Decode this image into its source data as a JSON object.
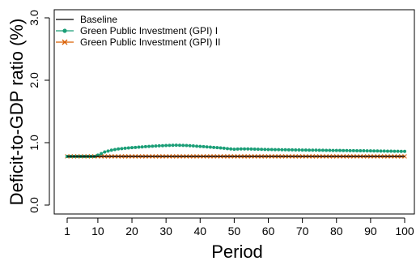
{
  "chart_data": {
    "type": "line",
    "xlabel": "Period",
    "ylabel": "Deficit-to-GDP ratio (%)",
    "xlim": [
      1,
      100
    ],
    "ylim": [
      0,
      3
    ],
    "x_ticks": [
      1,
      10,
      20,
      30,
      40,
      50,
      60,
      70,
      80,
      90,
      100
    ],
    "y_ticks": [
      0,
      1,
      2,
      3
    ],
    "x_tick_labels": [
      "1",
      "10",
      "20",
      "30",
      "40",
      "50",
      "60",
      "70",
      "80",
      "90",
      "100"
    ],
    "y_tick_labels": [
      "0.0",
      "1.0",
      "2.0",
      "3.0"
    ],
    "grid": false,
    "legend_position": "top-left",
    "series": [
      {
        "name": "Baseline",
        "style": "line",
        "color": "#000000",
        "points": [
          [
            1,
            0.78
          ],
          [
            100,
            0.78
          ]
        ]
      },
      {
        "name": "Green Public Investment (GPI) I",
        "style": "line-dots",
        "color": "#1b9e77",
        "points": [
          [
            1,
            0.78
          ],
          [
            9,
            0.78
          ],
          [
            10,
            0.8
          ],
          [
            12,
            0.85
          ],
          [
            14,
            0.88
          ],
          [
            16,
            0.9
          ],
          [
            20,
            0.92
          ],
          [
            25,
            0.94
          ],
          [
            30,
            0.955
          ],
          [
            33,
            0.96
          ],
          [
            36,
            0.955
          ],
          [
            40,
            0.94
          ],
          [
            45,
            0.92
          ],
          [
            50,
            0.895
          ],
          [
            52,
            0.9
          ],
          [
            55,
            0.898
          ],
          [
            60,
            0.89
          ],
          [
            70,
            0.882
          ],
          [
            80,
            0.875
          ],
          [
            90,
            0.868
          ],
          [
            100,
            0.86
          ]
        ]
      },
      {
        "name": "Green Public Investment (GPI) II",
        "style": "line-cross",
        "color": "#d95f02",
        "points": [
          [
            1,
            0.78
          ],
          [
            100,
            0.78
          ]
        ]
      }
    ]
  }
}
